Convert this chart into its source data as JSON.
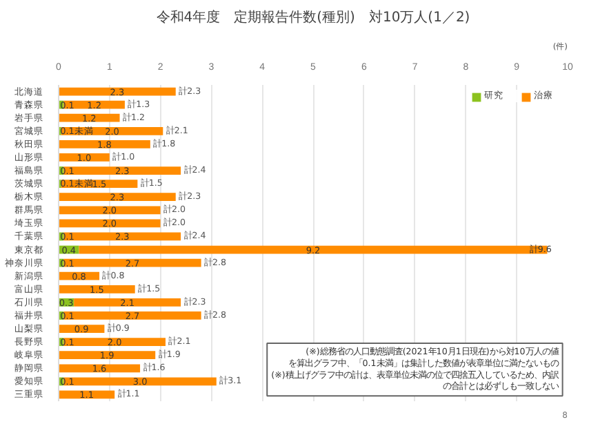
{
  "chart_data": {
    "type": "bar",
    "orientation": "horizontal",
    "stacked": true,
    "title": "令和4年度　定期報告件数(種別)　対10万人(1／2)",
    "categories": [
      "北海道",
      "青森県",
      "岩手県",
      "宮城県",
      "秋田県",
      "山形県",
      "福島県",
      "茨城県",
      "栃木県",
      "群馬県",
      "埼玉県",
      "千葉県",
      "東京都",
      "神奈川県",
      "新潟県",
      "富山県",
      "石川県",
      "福井県",
      "山梨県",
      "長野県",
      "岐阜県",
      "静岡県",
      "愛知県",
      "三重県"
    ],
    "series": [
      {
        "name": "研究",
        "color": "#8cc21f",
        "values": [
          null,
          0.1,
          null,
          0.05,
          null,
          null,
          0.1,
          0.05,
          null,
          null,
          null,
          0.1,
          0.4,
          0.1,
          null,
          null,
          0.3,
          0.1,
          null,
          0.1,
          null,
          null,
          0.1,
          null
        ],
        "value_labels": [
          null,
          "0.1",
          null,
          "0.1未満",
          null,
          null,
          "0.1",
          "0.1未満",
          null,
          null,
          null,
          "0.1",
          "0.4",
          "0.1",
          null,
          null,
          "0.3",
          "0.1",
          null,
          "0.1",
          null,
          null,
          "0.1",
          null
        ]
      },
      {
        "name": "治療",
        "color": "#ff8c00",
        "values": [
          2.3,
          1.2,
          1.2,
          2.0,
          1.8,
          1.0,
          2.3,
          1.5,
          2.3,
          2.0,
          2.0,
          2.3,
          9.2,
          2.7,
          0.8,
          1.5,
          2.1,
          2.7,
          0.9,
          2.0,
          1.9,
          1.6,
          3.0,
          1.1
        ],
        "value_labels": [
          "2.3",
          "1.2",
          "1.2",
          "2.0",
          "1.8",
          "1.0",
          "2.3",
          "1.5",
          "2.3",
          "2.0",
          "2.0",
          "2.3",
          "9.2",
          "2.7",
          "0.8",
          "1.5",
          "2.1",
          "2.7",
          "0.9",
          "2.0",
          "1.9",
          "1.6",
          "3.0",
          "1.1"
        ]
      }
    ],
    "totals": [
      "計2.3",
      "計1.3",
      "計1.2",
      "計2.1",
      "計1.8",
      "計1.0",
      "計2.4",
      "計1.5",
      "計2.3",
      "計2.0",
      "計2.0",
      "計2.4",
      "計9.6",
      "計2.8",
      "計0.8",
      "計1.5",
      "計2.3",
      "計2.8",
      "計0.9",
      "計2.1",
      "計1.9",
      "計1.6",
      "計3.1",
      "計1.1"
    ],
    "xlim": [
      0,
      10
    ],
    "xticks": [
      0,
      1,
      2,
      3,
      4,
      5,
      6,
      7,
      8,
      9,
      10
    ],
    "grid": "x",
    "legend": "top right",
    "annotations": [
      "(件)",
      "(※)総務省の人口動態調査(2021年10月1日現在)から対10万人の値を算出グラフ中、「0.1未満」は集計した数値が表章単位に満たないもの",
      "(※)積上げグラフ中の計は、表章単位未満の位で四捨五入しているため、内訳の合計とは必ずしも一致しない",
      "8"
    ]
  }
}
